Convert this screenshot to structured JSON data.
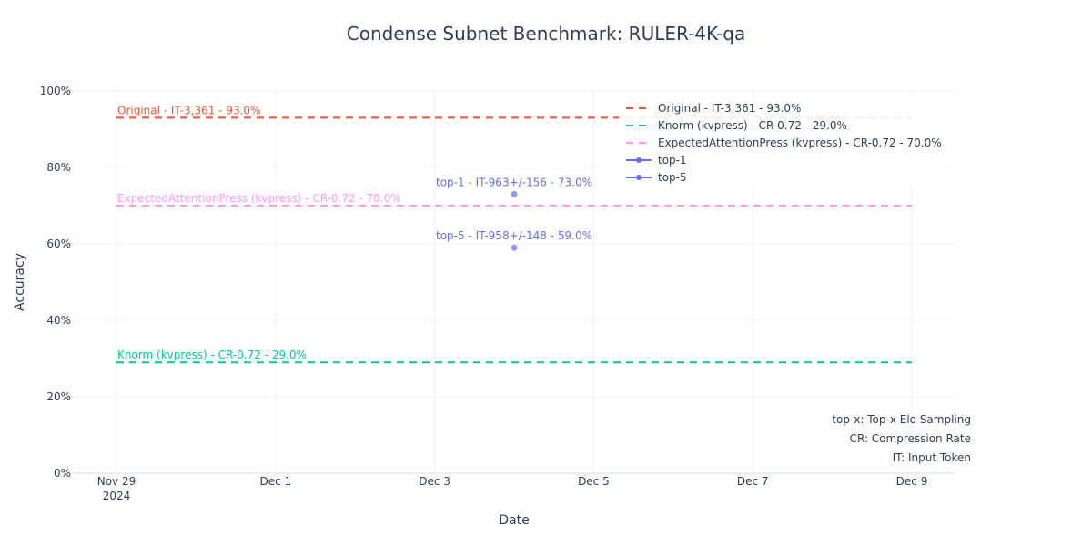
{
  "chart_data": {
    "type": "line",
    "title": "Condense Subnet Benchmark: RULER-4K-qa",
    "xlabel": "Date",
    "ylabel": "Accuracy",
    "xlim": [
      "2024-11-29",
      "2024-12-09"
    ],
    "ylim": [
      0,
      100
    ],
    "x_ticks": [
      {
        "date": "2024-11-29",
        "label": "Nov 29",
        "sublabel": "2024"
      },
      {
        "date": "2024-12-01",
        "label": "Dec 1",
        "sublabel": ""
      },
      {
        "date": "2024-12-03",
        "label": "Dec 3",
        "sublabel": ""
      },
      {
        "date": "2024-12-05",
        "label": "Dec 5",
        "sublabel": ""
      },
      {
        "date": "2024-12-07",
        "label": "Dec 7",
        "sublabel": ""
      },
      {
        "date": "2024-12-09",
        "label": "Dec 9",
        "sublabel": ""
      }
    ],
    "y_ticks": [
      {
        "value": 0,
        "label": "0%"
      },
      {
        "value": 20,
        "label": "20%"
      },
      {
        "value": 40,
        "label": "40%"
      },
      {
        "value": 60,
        "label": "60%"
      },
      {
        "value": 80,
        "label": "80%"
      },
      {
        "value": 100,
        "label": "100%"
      }
    ],
    "grid": true,
    "legend_position": "top-right",
    "reference_lines": [
      {
        "name": "Original - IT-3,361 - 93.0%",
        "value": 93.0,
        "color": "#EF553B",
        "label": "Original - IT-3,361 - 93.0%"
      },
      {
        "name": "Knorm (kvpress) - CR-0.72 - 29.0%",
        "value": 29.0,
        "color": "#00CC96",
        "label": "Knorm (kvpress) - CR-0.72 - 29.0%"
      },
      {
        "name": "ExpectedAttentionPress (kvpress) - CR-0.72 - 70.0%",
        "value": 70.0,
        "color": "#FF97FF",
        "label": "ExpectedAttentionPress (kvpress) - CR-0.72 - 70.0%"
      }
    ],
    "series": [
      {
        "name": "top-1",
        "color": "#636EFA",
        "points": [
          {
            "x": "2024-12-04",
            "y": 73.0,
            "label": "top-1 - IT-963+/-156 - 73.0%"
          }
        ]
      },
      {
        "name": "top-5",
        "color": "#636EFA",
        "points": [
          {
            "x": "2024-12-04",
            "y": 59.0,
            "label": "top-5 - IT-958+/-148 - 59.0%"
          }
        ]
      }
    ],
    "notes": [
      "top-x: Top-x Elo Sampling",
      "CR: Compression Rate",
      "IT: Input Token"
    ]
  }
}
